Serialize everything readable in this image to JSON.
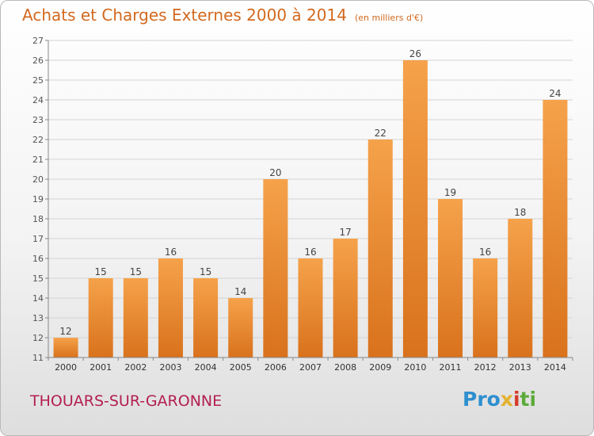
{
  "header": {
    "title": "Achats et Charges Externes 2000 à 2014",
    "subtitle": "(en milliers d'€)"
  },
  "footer": {
    "city": "THOUARS-SUR-GARONNE",
    "logo_parts": [
      "Pro",
      "x",
      "i",
      "ti"
    ]
  },
  "colors": {
    "bar_light": "#f5a24b",
    "bar_dark": "#d9721c",
    "title": "#d2691e",
    "city": "#b31f4f"
  },
  "chart_data": {
    "type": "bar",
    "categories": [
      "2000",
      "2001",
      "2002",
      "2003",
      "2004",
      "2005",
      "2006",
      "2007",
      "2008",
      "2009",
      "2010",
      "2011",
      "2012",
      "2013",
      "2014"
    ],
    "values": [
      12,
      15,
      15,
      16,
      15,
      14,
      20,
      16,
      17,
      22,
      26,
      19,
      16,
      18,
      24
    ],
    "title": "Achats et Charges Externes 2000 à 2014",
    "subtitle": "(en milliers d'€)",
    "xlabel": "",
    "ylabel": "",
    "ylim": [
      11,
      27
    ],
    "yticks": [
      11,
      12,
      13,
      14,
      15,
      16,
      17,
      18,
      19,
      20,
      21,
      22,
      23,
      24,
      25,
      26,
      27
    ],
    "grid": true,
    "data_labels": true
  }
}
